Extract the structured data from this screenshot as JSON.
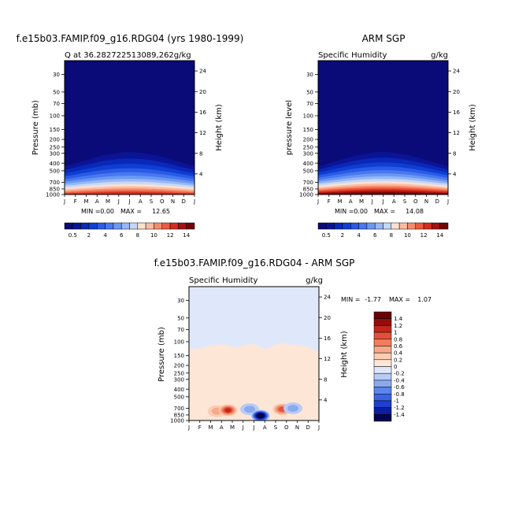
{
  "chart_data": [
    {
      "type": "heatmap",
      "title": "f.e15b03.FAMIP.f09_g16.RDG04 (yrs 1980-1999)",
      "subtitle_left": "Q at 36.282722513089,262g/kg",
      "ylabel": "Pressure (mb)",
      "y2label": "Height (km)",
      "x_ticks": [
        "J",
        "F",
        "M",
        "A",
        "M",
        "J",
        "J",
        "A",
        "S",
        "O",
        "N",
        "D",
        "J"
      ],
      "y_ticks": [
        30,
        50,
        70,
        100,
        150,
        200,
        250,
        300,
        400,
        500,
        700,
        850,
        1000
      ],
      "y2_ticks": [
        24,
        20,
        16,
        12,
        8,
        4
      ],
      "min_label": "MIN =",
      "min_value": "0.00",
      "max_label": "MAX =",
      "max_value": "12.65",
      "peak_month": "Jul",
      "peak_value": 12.65,
      "colorbar": {
        "levels": [
          0.5,
          1,
          2,
          3,
          4,
          5,
          6,
          7,
          8,
          9,
          10,
          11,
          12,
          13,
          14
        ],
        "tick_labels": [
          "0.5",
          "2",
          "4",
          "6",
          "8",
          "10",
          "12",
          "14"
        ]
      }
    },
    {
      "type": "heatmap",
      "title": "ARM SGP",
      "subtitle_left": "Specific Humidity",
      "subtitle_right": "g/kg",
      "ylabel": "pressure level",
      "y2label": "Height (km)",
      "x_ticks": [
        "J",
        "F",
        "M",
        "A",
        "M",
        "J",
        "J",
        "A",
        "S",
        "O",
        "N",
        "D",
        "J"
      ],
      "y_ticks": [
        30,
        50,
        70,
        100,
        150,
        200,
        250,
        300,
        400,
        500,
        700,
        850,
        1000
      ],
      "y2_ticks": [
        24,
        20,
        16,
        12,
        8,
        4
      ],
      "min_label": "MIN =",
      "min_value": "0.00",
      "max_label": "MAX =",
      "max_value": "14.08",
      "peak_month": "Jul",
      "peak_value": 14.08,
      "colorbar": {
        "levels": [
          0.5,
          1,
          2,
          3,
          4,
          5,
          6,
          7,
          8,
          9,
          10,
          11,
          12,
          13,
          14
        ],
        "tick_labels": [
          "0.5",
          "2",
          "4",
          "6",
          "8",
          "10",
          "12",
          "14"
        ]
      }
    },
    {
      "type": "heatmap",
      "title": "f.e15b03.FAMIP.f09_g16.RDG04 - ARM SGP",
      "subtitle_left": "Specific Humidity",
      "subtitle_right": "g/kg",
      "ylabel": "Pressure (mb)",
      "y2label": "Height (km)",
      "x_ticks": [
        "J",
        "F",
        "M",
        "A",
        "M",
        "J",
        "J",
        "A",
        "S",
        "O",
        "N",
        "D",
        "J"
      ],
      "y_ticks": [
        30,
        50,
        70,
        100,
        150,
        200,
        250,
        300,
        400,
        500,
        700,
        850,
        1000
      ],
      "y2_ticks": [
        24,
        20,
        16,
        12,
        8,
        4
      ],
      "min_label": "MIN =",
      "min_value": "-1.77",
      "max_label": "MAX =",
      "max_value": "1.07",
      "colorbar": {
        "levels": [
          -1.4,
          -1.2,
          -1,
          -0.8,
          -0.6,
          -0.4,
          -0.2,
          0,
          0.2,
          0.4,
          0.6,
          0.8,
          1,
          1.2,
          1.4
        ],
        "tick_labels": [
          "1.4",
          "1.2",
          "1",
          "0.8",
          "0.6",
          "0.4",
          "0.2",
          "0",
          "-0.2",
          "-0.4",
          "-0.6",
          "-0.8",
          "-1",
          "-1.2",
          "-1.4"
        ]
      },
      "anomalies": [
        {
          "month": "Mar",
          "pressure_mb": 760,
          "value": 0.4
        },
        {
          "month": "Apr",
          "pressure_mb": 740,
          "value": 1.07
        },
        {
          "month": "Jun",
          "pressure_mb": 720,
          "value": -0.4
        },
        {
          "month": "Jul",
          "pressure_mb": 870,
          "value": -1.77
        },
        {
          "month": "Sep",
          "pressure_mb": 720,
          "value": 0.8
        },
        {
          "month": "Oct",
          "pressure_mb": 700,
          "value": -0.4
        }
      ]
    }
  ],
  "colors": {
    "seq": [
      "#0a0a78",
      "#0b1496",
      "#0a28b8",
      "#0e3ed2",
      "#2a5ae6",
      "#4878ee",
      "#6c98f2",
      "#97b8f6",
      "#c6d8f8",
      "#fde0cf",
      "#fbbca2",
      "#f68c6c",
      "#ec5a3e",
      "#d42c1c",
      "#a41210",
      "#700606"
    ],
    "div": [
      "#040450",
      "#0b1ea0",
      "#1c40d0",
      "#3a64e2",
      "#5a86ea",
      "#8aaaf0",
      "#b8ccf6",
      "#dfe8fb",
      "#fde6d6",
      "#fbccb2",
      "#f8a888",
      "#f27c5c",
      "#e2503a",
      "#c2261c",
      "#960c0c",
      "#6a0404"
    ]
  }
}
